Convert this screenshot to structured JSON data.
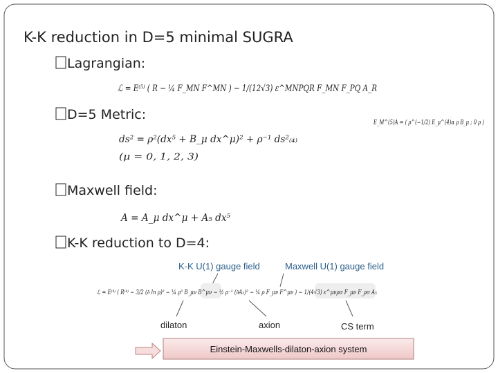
{
  "header": {
    "title": "K-K reduction in D=5 minimal SUGRA"
  },
  "bullets": [
    "Lagrangian:",
    "D=5 Metric:",
    "Maxwell field:",
    "K-K reduction to D=4:"
  ],
  "equations": {
    "lagrangian": "ℒ = E⁽⁵⁾ ( R − ¼ F_MN F^MN ) − 1/(12√3) ε^MNPQR F_MN F_PQ A_R",
    "vielbein": "E_M^(5)A = ( ρ^(−1/2) E_μ^(4)α   ρ B_μ ;  0   ρ )",
    "metric": "ds² = ρ²(dx⁵ + B_μ dx^μ)² + ρ⁻¹ ds²₍₄₎",
    "metric_range": "(μ = 0, 1, 2, 3)",
    "maxwell": "A = A_μ dx^μ + A₅ dx⁵",
    "reduced": "ℒ = E⁽⁴⁾ ( R⁽⁴⁾ − 3/2 (∂ ln ρ)² − ¼ ρ³ B_μν B^μν − ½ ρ⁻¹ (∂A₅)² − ¼ ρ F_μν F^μν ) − 1/(4√3) ε^μνρσ F_μν F_ρσ A₅"
  },
  "annotations": {
    "kk_gauge": "K-K U(1) gauge field",
    "maxwell_gauge": "Maxwell U(1) gauge field",
    "dilaton": "dilaton",
    "axion": "axion",
    "cs_term": "CS term",
    "result": "Einstein-Maxwells-dilaton-axion system"
  }
}
